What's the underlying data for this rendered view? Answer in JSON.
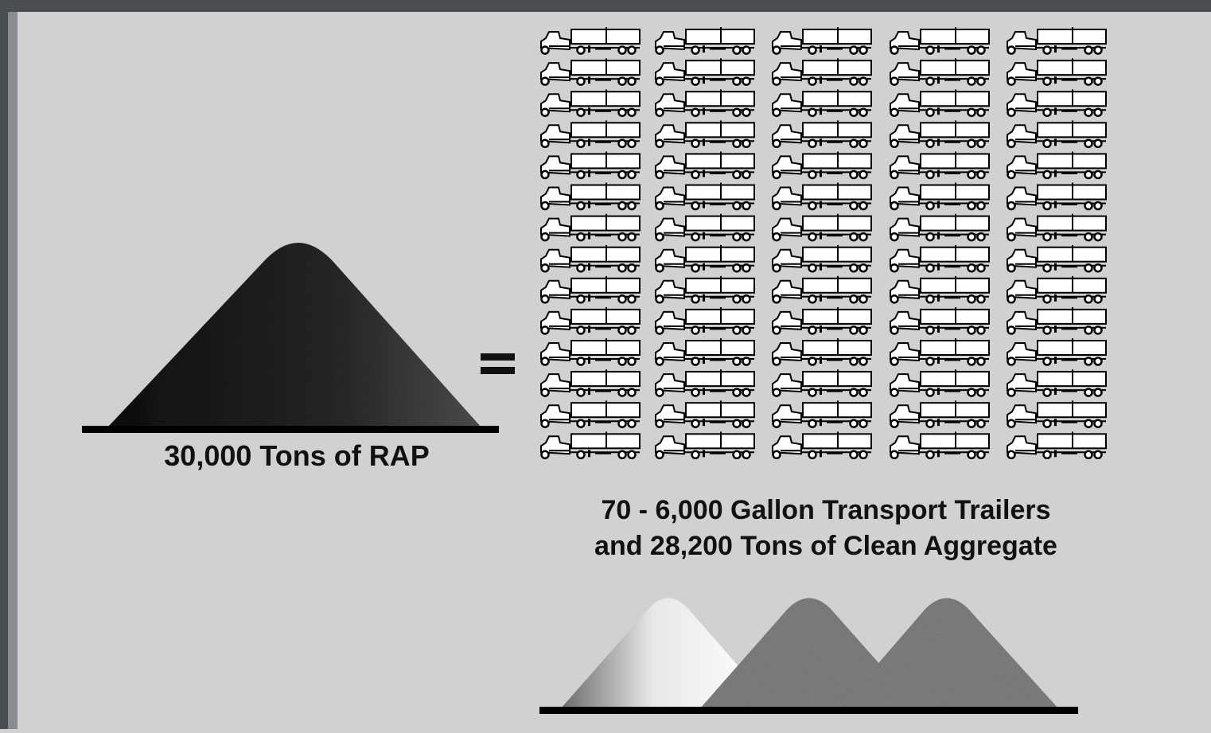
{
  "left_pile": {
    "label": "30,000 Tons of RAP"
  },
  "right_side": {
    "line1": "70 - 6,000 Gallon Transport Trailers",
    "line2": "and 28,200 Tons of Clean Aggregate"
  }
}
